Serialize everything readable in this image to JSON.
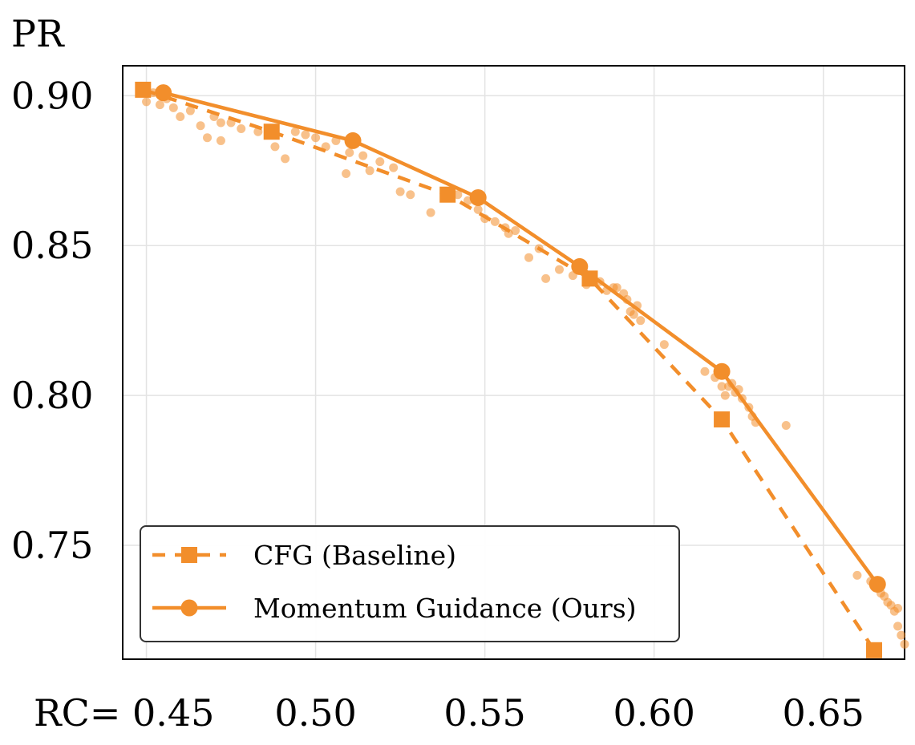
{
  "chart_data": {
    "type": "line",
    "title": "",
    "xlabel": "RC=",
    "ylabel": "PR",
    "xlim": [
      0.443,
      0.674
    ],
    "ylim": [
      0.712,
      0.91
    ],
    "xticks": [
      0.45,
      0.5,
      0.55,
      0.6,
      0.65
    ],
    "xtick_labels": [
      "0.45",
      "0.50",
      "0.55",
      "0.60",
      "0.65"
    ],
    "yticks": [
      0.75,
      0.8,
      0.85,
      0.9
    ],
    "ytick_labels": [
      "0.75",
      "0.80",
      "0.85",
      "0.90"
    ],
    "grid": true,
    "legend_position": "bottom-left",
    "color": "#F28E2B",
    "series": [
      {
        "name": "CFG (Baseline)",
        "style": "dashed",
        "marker": "square",
        "x": [
          0.449,
          0.487,
          0.539,
          0.581,
          0.62,
          0.665
        ],
        "y": [
          0.902,
          0.888,
          0.867,
          0.839,
          0.792,
          0.715
        ]
      },
      {
        "name": "Momentum Guidance (Ours)",
        "style": "solid",
        "marker": "circle",
        "x": [
          0.455,
          0.511,
          0.548,
          0.578,
          0.62,
          0.666
        ],
        "y": [
          0.901,
          0.885,
          0.866,
          0.843,
          0.808,
          0.737
        ]
      }
    ],
    "scatter_points": {
      "x": [
        0.45,
        0.452,
        0.454,
        0.456,
        0.458,
        0.46,
        0.463,
        0.466,
        0.468,
        0.47,
        0.472,
        0.475,
        0.478,
        0.472,
        0.483,
        0.488,
        0.491,
        0.494,
        0.497,
        0.5,
        0.503,
        0.506,
        0.51,
        0.509,
        0.514,
        0.516,
        0.519,
        0.523,
        0.525,
        0.528,
        0.534,
        0.538,
        0.542,
        0.545,
        0.548,
        0.55,
        0.553,
        0.556,
        0.557,
        0.559,
        0.563,
        0.568,
        0.566,
        0.572,
        0.576,
        0.58,
        0.584,
        0.586,
        0.588,
        0.589,
        0.591,
        0.592,
        0.593,
        0.594,
        0.595,
        0.596,
        0.603,
        0.615,
        0.618,
        0.62,
        0.621,
        0.622,
        0.623,
        0.624,
        0.625,
        0.626,
        0.628,
        0.629,
        0.63,
        0.639,
        0.66,
        0.664,
        0.667,
        0.668,
        0.669,
        0.67,
        0.671,
        0.672,
        0.672,
        0.673,
        0.674
      ],
      "y": [
        0.898,
        0.901,
        0.897,
        0.899,
        0.896,
        0.893,
        0.895,
        0.89,
        0.886,
        0.893,
        0.891,
        0.891,
        0.889,
        0.885,
        0.888,
        0.883,
        0.879,
        0.888,
        0.887,
        0.886,
        0.883,
        0.885,
        0.881,
        0.874,
        0.88,
        0.875,
        0.878,
        0.876,
        0.868,
        0.867,
        0.861,
        0.866,
        0.867,
        0.865,
        0.862,
        0.859,
        0.858,
        0.856,
        0.854,
        0.855,
        0.846,
        0.839,
        0.849,
        0.842,
        0.84,
        0.837,
        0.838,
        0.835,
        0.836,
        0.836,
        0.834,
        0.832,
        0.828,
        0.827,
        0.83,
        0.825,
        0.817,
        0.808,
        0.806,
        0.803,
        0.8,
        0.803,
        0.804,
        0.801,
        0.802,
        0.799,
        0.796,
        0.793,
        0.791,
        0.79,
        0.74,
        0.738,
        0.734,
        0.733,
        0.731,
        0.73,
        0.728,
        0.729,
        0.723,
        0.72,
        0.717
      ]
    }
  }
}
